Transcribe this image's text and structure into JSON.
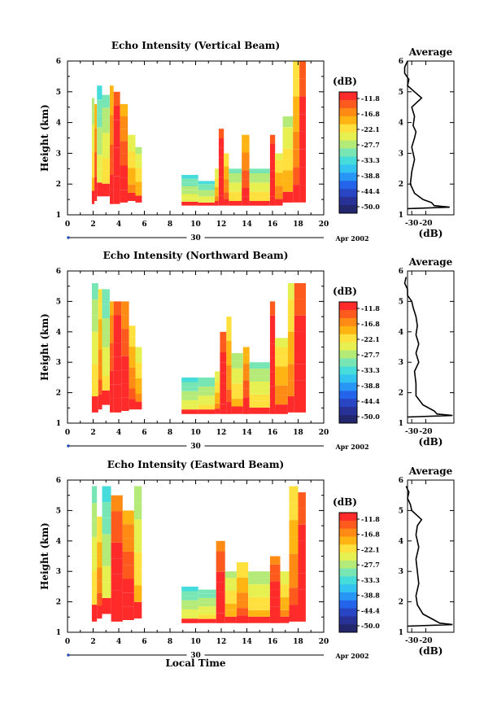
{
  "chart_data": [
    {
      "type": "heatmap",
      "title": "Echo Intensity (Vertical Beam)",
      "ylabel": "Height (km)",
      "xlim": [
        0,
        20
      ],
      "ylim": [
        1,
        6
      ],
      "x_ticks": [
        "0",
        "2",
        "4",
        "6",
        "8",
        "10",
        "12",
        "14",
        "16",
        "18",
        "20"
      ],
      "y_ticks": [
        "1",
        "2",
        "3",
        "4",
        "5",
        "6"
      ],
      "date_marker": "30",
      "date_label": "Apr 2002",
      "columns": [
        [
          1.9,
          2.1,
          1.35,
          4.8,
          0.4
        ],
        [
          2.1,
          2.3,
          1.45,
          4.6,
          0.7
        ],
        [
          2.3,
          2.7,
          1.6,
          5.2,
          0.2
        ],
        [
          2.7,
          3.3,
          1.6,
          4.9,
          0.35
        ],
        [
          3.3,
          3.6,
          1.35,
          5.2,
          0.7
        ],
        [
          3.6,
          4.1,
          1.35,
          5.0,
          1.0
        ],
        [
          4.1,
          4.7,
          1.4,
          4.6,
          0.8
        ],
        [
          4.7,
          5.3,
          1.45,
          3.6,
          0.5
        ],
        [
          5.3,
          5.8,
          1.4,
          3.2,
          0.45
        ],
        [
          8.9,
          10.2,
          1.3,
          2.3,
          0.2
        ],
        [
          10.2,
          11.5,
          1.3,
          2.1,
          0.25
        ],
        [
          11.5,
          11.8,
          1.3,
          2.5,
          0.5
        ],
        [
          11.8,
          12.2,
          1.3,
          3.8,
          1.0
        ],
        [
          12.2,
          12.6,
          1.3,
          3.0,
          0.6
        ],
        [
          12.6,
          13.6,
          1.3,
          2.5,
          0.35
        ],
        [
          13.6,
          14.2,
          1.3,
          3.6,
          0.75
        ],
        [
          14.2,
          15.8,
          1.3,
          2.5,
          0.35
        ],
        [
          15.8,
          16.2,
          1.3,
          3.6,
          1.0
        ],
        [
          16.2,
          16.8,
          1.3,
          3.0,
          0.55
        ],
        [
          16.8,
          17.6,
          1.4,
          4.2,
          0.45
        ],
        [
          17.6,
          18.1,
          1.4,
          6.0,
          0.6
        ],
        [
          18.1,
          18.6,
          1.4,
          6.0,
          0.95
        ]
      ],
      "average_profile": {
        "title": "Average",
        "xlabel": "(dB)",
        "x_ticks": [
          "-30",
          "-20"
        ],
        "y_ticks": [
          "1",
          "2",
          "3",
          "4",
          "5",
          "6"
        ],
        "heights": [
          1.2,
          1.25,
          1.3,
          1.4,
          1.5,
          1.7,
          2.0,
          2.4,
          2.8,
          3.2,
          3.5,
          3.7,
          3.9,
          4.2,
          4.5,
          4.8,
          5.0,
          5.2,
          5.4,
          5.6,
          5.8,
          6.0
        ],
        "values": [
          -33,
          -3,
          -14,
          -16,
          -22,
          -28,
          -31,
          -30,
          -28,
          -30,
          -28,
          -27,
          -29,
          -28,
          -30,
          -23,
          -28,
          -33,
          -32,
          -35,
          -35,
          -33
        ]
      }
    },
    {
      "type": "heatmap",
      "title": "Echo Intensity (Northward Beam)",
      "ylabel": "Height (km)",
      "xlim": [
        0,
        20
      ],
      "ylim": [
        1,
        6
      ],
      "x_ticks": [
        "0",
        "2",
        "4",
        "6",
        "8",
        "10",
        "12",
        "14",
        "16",
        "18",
        "20"
      ],
      "y_ticks": [
        "1",
        "2",
        "3",
        "4",
        "5",
        "6"
      ],
      "date_marker": "30",
      "date_label": "Apr 2002",
      "columns": [
        [
          1.9,
          2.4,
          1.35,
          5.6,
          0.35
        ],
        [
          2.4,
          2.7,
          1.45,
          5.4,
          0.6
        ],
        [
          2.7,
          3.3,
          1.6,
          5.4,
          0.3
        ],
        [
          3.3,
          3.6,
          1.35,
          5.0,
          0.8
        ],
        [
          3.6,
          4.2,
          1.35,
          5.0,
          1.0
        ],
        [
          4.2,
          4.8,
          1.4,
          5.0,
          0.85
        ],
        [
          4.8,
          5.3,
          1.45,
          4.2,
          0.6
        ],
        [
          5.3,
          5.8,
          1.45,
          3.5,
          0.5
        ],
        [
          8.9,
          10.2,
          1.3,
          2.5,
          0.2
        ],
        [
          10.2,
          11.5,
          1.3,
          2.5,
          0.3
        ],
        [
          11.5,
          11.9,
          1.3,
          2.7,
          0.5
        ],
        [
          11.9,
          12.4,
          1.3,
          4.0,
          0.95
        ],
        [
          12.4,
          12.8,
          1.3,
          4.5,
          0.6
        ],
        [
          12.8,
          13.7,
          1.3,
          3.3,
          0.4
        ],
        [
          13.7,
          14.2,
          1.3,
          3.5,
          0.75
        ],
        [
          14.2,
          15.8,
          1.3,
          3.0,
          0.35
        ],
        [
          15.8,
          16.2,
          1.3,
          5.0,
          1.0
        ],
        [
          16.2,
          17.2,
          1.3,
          3.8,
          0.55
        ],
        [
          17.2,
          17.7,
          1.35,
          5.6,
          0.55
        ],
        [
          17.7,
          18.6,
          1.35,
          5.6,
          0.95
        ]
      ],
      "average_profile": {
        "title": "Average",
        "xlabel": "(dB)",
        "x_ticks": [
          "-30",
          "-20"
        ],
        "y_ticks": [
          "1",
          "2",
          "3",
          "4",
          "5",
          "6"
        ],
        "heights": [
          1.2,
          1.25,
          1.3,
          1.4,
          1.6,
          1.9,
          2.3,
          2.7,
          3.0,
          3.3,
          3.6,
          3.9,
          4.2,
          4.5,
          4.8,
          5.0,
          5.2,
          5.4,
          5.6,
          5.8
        ],
        "values": [
          -33,
          -1,
          -12,
          -14,
          -22,
          -27,
          -27,
          -28,
          -25,
          -27,
          -25,
          -27,
          -26,
          -27,
          -29,
          -30,
          -33,
          -33,
          -35,
          -34
        ]
      }
    },
    {
      "type": "heatmap",
      "title": "Echo Intensity (Eastward Beam)",
      "ylabel": "Height (km)",
      "xlabel": "Local Time",
      "xlim": [
        0,
        20
      ],
      "ylim": [
        1,
        6
      ],
      "x_ticks": [
        "0",
        "2",
        "4",
        "6",
        "8",
        "10",
        "12",
        "14",
        "16",
        "18",
        "20"
      ],
      "y_ticks": [
        "1",
        "2",
        "3",
        "4",
        "5",
        "6"
      ],
      "date_marker": "30",
      "date_label": "Apr 2002",
      "columns": [
        [
          1.9,
          2.3,
          1.35,
          5.8,
          0.35
        ],
        [
          2.3,
          2.7,
          1.45,
          4.8,
          0.6
        ],
        [
          2.7,
          3.4,
          1.6,
          5.8,
          0.25
        ],
        [
          3.4,
          4.3,
          1.35,
          5.5,
          0.9
        ],
        [
          4.3,
          5.2,
          1.4,
          5.0,
          0.8
        ],
        [
          5.2,
          5.8,
          1.45,
          5.8,
          0.4
        ],
        [
          8.9,
          10.2,
          1.3,
          2.5,
          0.2
        ],
        [
          10.2,
          11.6,
          1.3,
          2.4,
          0.3
        ],
        [
          11.6,
          12.3,
          1.3,
          4.0,
          0.9
        ],
        [
          12.3,
          13.2,
          1.3,
          3.0,
          0.45
        ],
        [
          13.2,
          14.1,
          1.3,
          3.3,
          0.6
        ],
        [
          14.1,
          15.8,
          1.3,
          3.0,
          0.4
        ],
        [
          15.8,
          16.6,
          1.3,
          3.5,
          0.9
        ],
        [
          16.6,
          17.3,
          1.3,
          3.0,
          0.5
        ],
        [
          17.3,
          18.0,
          1.35,
          5.8,
          0.6
        ],
        [
          18.0,
          18.6,
          1.35,
          5.6,
          0.95
        ]
      ],
      "average_profile": {
        "title": "Average",
        "xlabel": "(dB)",
        "x_ticks": [
          "-30",
          "-20"
        ],
        "y_ticks": [
          "1",
          "2",
          "3",
          "4",
          "5",
          "6"
        ],
        "heights": [
          1.2,
          1.25,
          1.3,
          1.4,
          1.6,
          1.9,
          2.2,
          2.6,
          3.0,
          3.4,
          3.8,
          4.2,
          4.5,
          4.7,
          5.0,
          5.2,
          5.4,
          5.6,
          5.8
        ],
        "values": [
          -33,
          -1,
          -10,
          -14,
          -22,
          -26,
          -27,
          -25,
          -26,
          -27,
          -25,
          -27,
          -26,
          -23,
          -30,
          -31,
          -33,
          -32,
          -34
        ]
      }
    }
  ],
  "colorbar": {
    "unit_label": "(dB)",
    "tick_labels": [
      "-11.8",
      "-16.8",
      "-22.1",
      "-27.7",
      "-33.3",
      "-38.8",
      "-44.4",
      "-50.0"
    ],
    "colors": [
      "#ff2a2a",
      "#ff5a1e",
      "#ff8a14",
      "#ffb414",
      "#ffe03c",
      "#e6f050",
      "#b4eb78",
      "#78e6b4",
      "#46dcdc",
      "#32c3f0",
      "#2896f5",
      "#2364eb",
      "#2846c3",
      "#283296",
      "#23286e"
    ]
  }
}
